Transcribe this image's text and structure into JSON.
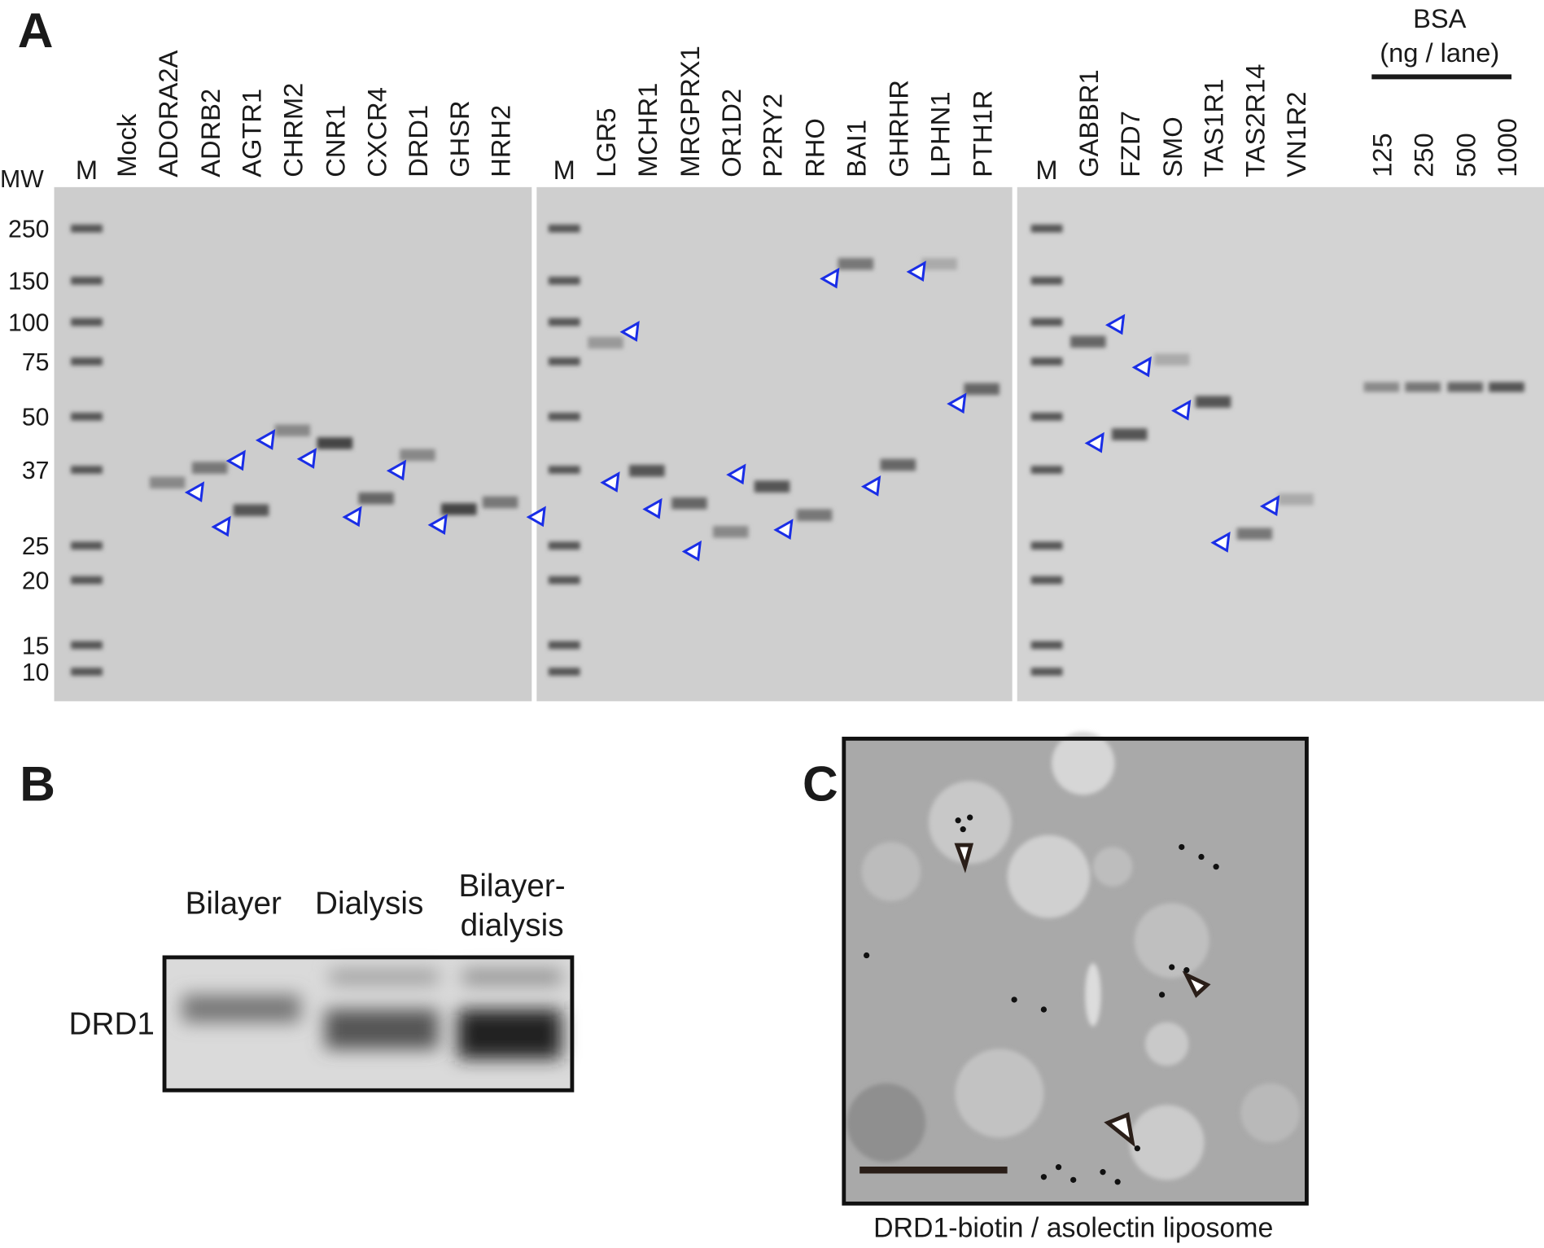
{
  "panel_a": {
    "label": "A",
    "mw_title": "MW",
    "mw_markers": [
      "250",
      "150",
      "100",
      "75",
      "50",
      "37",
      "25",
      "20",
      "15",
      "10"
    ],
    "lane_groups": [
      [
        "M",
        "Mock",
        "ADORA2A",
        "ADRB2",
        "AGTR1",
        "CHRM2",
        "CNR1",
        "CXCR4",
        "DRD1",
        "GHSR",
        "HRH2"
      ],
      [
        "M",
        "LGR5",
        "MCHR1",
        "MRGPRX1",
        "OR1D2",
        "P2RY2",
        "RHO",
        "BAI1",
        "GHRHR",
        "LPHN1",
        "PTH1R"
      ],
      [
        "M",
        "GABBR1",
        "FZD7",
        "SMO",
        "TAS1R1",
        "TAS2R14",
        "VN1R2"
      ]
    ],
    "bsa_title": "BSA",
    "bsa_unit": "(ng / lane)",
    "bsa_lanes": [
      "125",
      "250",
      "500",
      "1000"
    ]
  },
  "panel_b": {
    "label": "B",
    "conditions": [
      "Bilayer",
      "Dialysis",
      [
        "Bilayer-",
        "dialysis"
      ]
    ],
    "band_label": "DRD1"
  },
  "panel_c": {
    "label": "C",
    "caption": "DRD1-biotin / asolectin liposome"
  }
}
